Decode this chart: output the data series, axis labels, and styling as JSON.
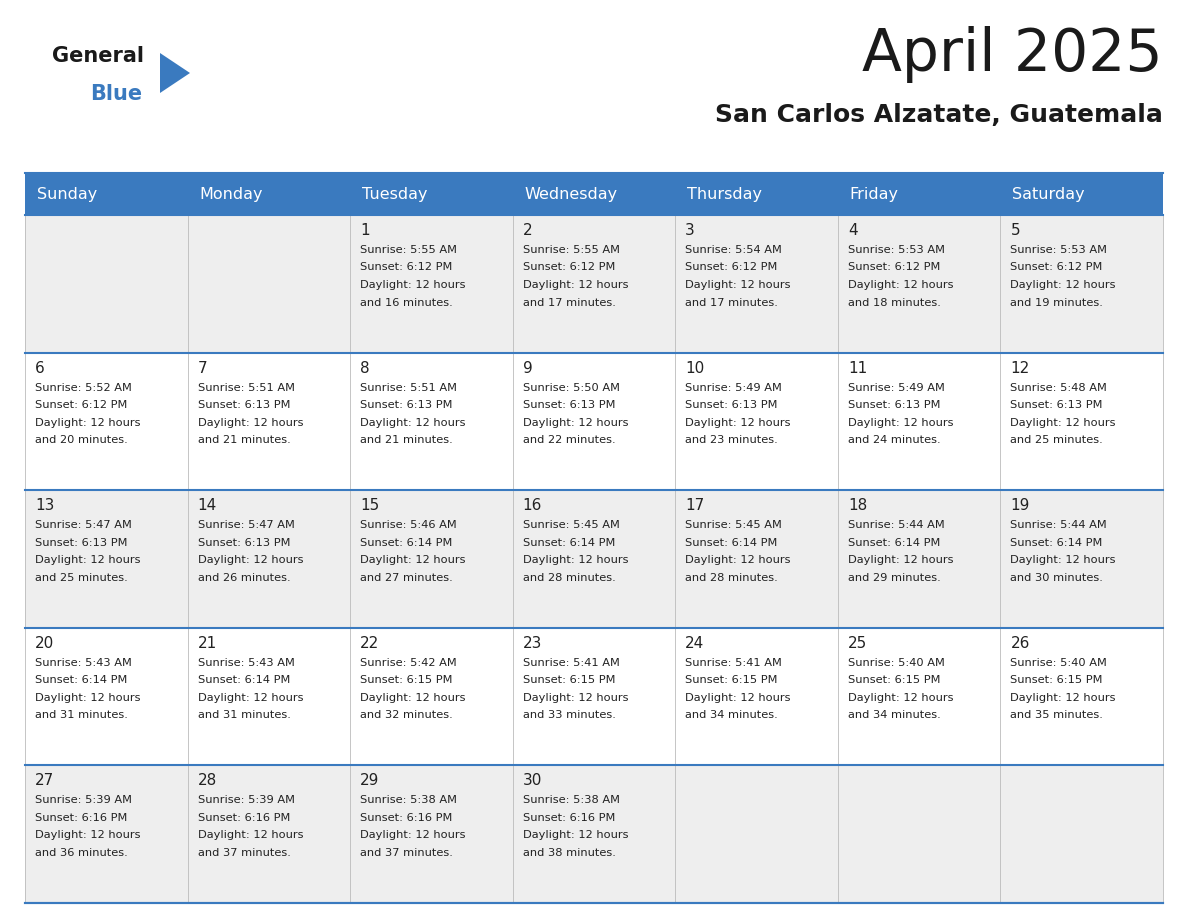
{
  "title": "April 2025",
  "subtitle": "San Carlos Alzatate, Guatemala",
  "header_color": "#3a7abf",
  "header_text_color": "#ffffff",
  "cell_bg_light": "#eeeeee",
  "cell_bg_white": "#ffffff",
  "border_color": "#3a7abf",
  "text_color": "#222222",
  "day_names": [
    "Sunday",
    "Monday",
    "Tuesday",
    "Wednesday",
    "Thursday",
    "Friday",
    "Saturday"
  ],
  "days_data": [
    {
      "col": 0,
      "row": 0,
      "num": "",
      "sunrise": "",
      "sunset": "",
      "daylight_min": ""
    },
    {
      "col": 1,
      "row": 0,
      "num": "",
      "sunrise": "",
      "sunset": "",
      "daylight_min": ""
    },
    {
      "col": 2,
      "row": 0,
      "num": "1",
      "sunrise": "5:55 AM",
      "sunset": "6:12 PM",
      "daylight_min": "16"
    },
    {
      "col": 3,
      "row": 0,
      "num": "2",
      "sunrise": "5:55 AM",
      "sunset": "6:12 PM",
      "daylight_min": "17"
    },
    {
      "col": 4,
      "row": 0,
      "num": "3",
      "sunrise": "5:54 AM",
      "sunset": "6:12 PM",
      "daylight_min": "17"
    },
    {
      "col": 5,
      "row": 0,
      "num": "4",
      "sunrise": "5:53 AM",
      "sunset": "6:12 PM",
      "daylight_min": "18"
    },
    {
      "col": 6,
      "row": 0,
      "num": "5",
      "sunrise": "5:53 AM",
      "sunset": "6:12 PM",
      "daylight_min": "19"
    },
    {
      "col": 0,
      "row": 1,
      "num": "6",
      "sunrise": "5:52 AM",
      "sunset": "6:12 PM",
      "daylight_min": "20"
    },
    {
      "col": 1,
      "row": 1,
      "num": "7",
      "sunrise": "5:51 AM",
      "sunset": "6:13 PM",
      "daylight_min": "21"
    },
    {
      "col": 2,
      "row": 1,
      "num": "8",
      "sunrise": "5:51 AM",
      "sunset": "6:13 PM",
      "daylight_min": "21"
    },
    {
      "col": 3,
      "row": 1,
      "num": "9",
      "sunrise": "5:50 AM",
      "sunset": "6:13 PM",
      "daylight_min": "22"
    },
    {
      "col": 4,
      "row": 1,
      "num": "10",
      "sunrise": "5:49 AM",
      "sunset": "6:13 PM",
      "daylight_min": "23"
    },
    {
      "col": 5,
      "row": 1,
      "num": "11",
      "sunrise": "5:49 AM",
      "sunset": "6:13 PM",
      "daylight_min": "24"
    },
    {
      "col": 6,
      "row": 1,
      "num": "12",
      "sunrise": "5:48 AM",
      "sunset": "6:13 PM",
      "daylight_min": "25"
    },
    {
      "col": 0,
      "row": 2,
      "num": "13",
      "sunrise": "5:47 AM",
      "sunset": "6:13 PM",
      "daylight_min": "25"
    },
    {
      "col": 1,
      "row": 2,
      "num": "14",
      "sunrise": "5:47 AM",
      "sunset": "6:13 PM",
      "daylight_min": "26"
    },
    {
      "col": 2,
      "row": 2,
      "num": "15",
      "sunrise": "5:46 AM",
      "sunset": "6:14 PM",
      "daylight_min": "27"
    },
    {
      "col": 3,
      "row": 2,
      "num": "16",
      "sunrise": "5:45 AM",
      "sunset": "6:14 PM",
      "daylight_min": "28"
    },
    {
      "col": 4,
      "row": 2,
      "num": "17",
      "sunrise": "5:45 AM",
      "sunset": "6:14 PM",
      "daylight_min": "28"
    },
    {
      "col": 5,
      "row": 2,
      "num": "18",
      "sunrise": "5:44 AM",
      "sunset": "6:14 PM",
      "daylight_min": "29"
    },
    {
      "col": 6,
      "row": 2,
      "num": "19",
      "sunrise": "5:44 AM",
      "sunset": "6:14 PM",
      "daylight_min": "30"
    },
    {
      "col": 0,
      "row": 3,
      "num": "20",
      "sunrise": "5:43 AM",
      "sunset": "6:14 PM",
      "daylight_min": "31"
    },
    {
      "col": 1,
      "row": 3,
      "num": "21",
      "sunrise": "5:43 AM",
      "sunset": "6:14 PM",
      "daylight_min": "31"
    },
    {
      "col": 2,
      "row": 3,
      "num": "22",
      "sunrise": "5:42 AM",
      "sunset": "6:15 PM",
      "daylight_min": "32"
    },
    {
      "col": 3,
      "row": 3,
      "num": "23",
      "sunrise": "5:41 AM",
      "sunset": "6:15 PM",
      "daylight_min": "33"
    },
    {
      "col": 4,
      "row": 3,
      "num": "24",
      "sunrise": "5:41 AM",
      "sunset": "6:15 PM",
      "daylight_min": "34"
    },
    {
      "col": 5,
      "row": 3,
      "num": "25",
      "sunrise": "5:40 AM",
      "sunset": "6:15 PM",
      "daylight_min": "34"
    },
    {
      "col": 6,
      "row": 3,
      "num": "26",
      "sunrise": "5:40 AM",
      "sunset": "6:15 PM",
      "daylight_min": "35"
    },
    {
      "col": 0,
      "row": 4,
      "num": "27",
      "sunrise": "5:39 AM",
      "sunset": "6:16 PM",
      "daylight_min": "36"
    },
    {
      "col": 1,
      "row": 4,
      "num": "28",
      "sunrise": "5:39 AM",
      "sunset": "6:16 PM",
      "daylight_min": "37"
    },
    {
      "col": 2,
      "row": 4,
      "num": "29",
      "sunrise": "5:38 AM",
      "sunset": "6:16 PM",
      "daylight_min": "37"
    },
    {
      "col": 3,
      "row": 4,
      "num": "30",
      "sunrise": "5:38 AM",
      "sunset": "6:16 PM",
      "daylight_min": "38"
    },
    {
      "col": 4,
      "row": 4,
      "num": "",
      "sunrise": "",
      "sunset": "",
      "daylight_min": ""
    },
    {
      "col": 5,
      "row": 4,
      "num": "",
      "sunrise": "",
      "sunset": "",
      "daylight_min": ""
    },
    {
      "col": 6,
      "row": 4,
      "num": "",
      "sunrise": "",
      "sunset": "",
      "daylight_min": ""
    }
  ],
  "num_rows": 5,
  "num_cols": 7
}
